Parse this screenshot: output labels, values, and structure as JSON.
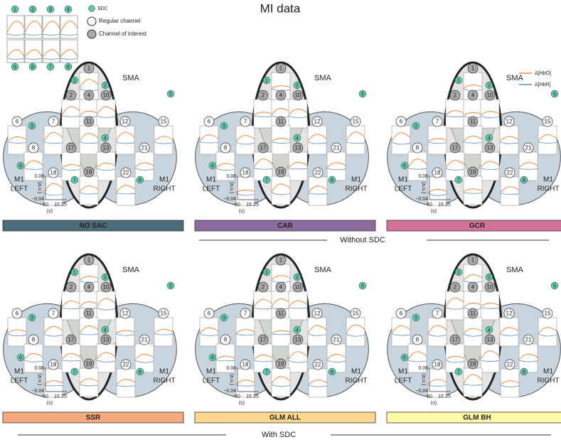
{
  "title": "MI data",
  "legend": {
    "sdc": "SDC",
    "regular": "Regular channel",
    "interest": "Channel of interest",
    "hbo": "Δ[HbO]",
    "hbr": "Δ[HbR]"
  },
  "inset_sdc": [
    1,
    2,
    3,
    4,
    5,
    6,
    7,
    8
  ],
  "montage": {
    "sma": "SMA",
    "m1": "M1",
    "left": "LEFT",
    "right": "RIGHT",
    "interest": [
      1,
      2,
      4,
      10,
      11,
      13,
      17,
      19
    ],
    "regular": [
      6,
      7,
      8,
      12,
      15,
      18,
      21,
      22
    ],
    "sdc": [
      1,
      2,
      3,
      4,
      5,
      6,
      7,
      8
    ],
    "yticks": [
      0.08,
      {
        "value": -0.04,
        "label": "−0.04"
      }
    ],
    "ylabel": "(a.u.)",
    "xticks": [
      {
        "value": -50,
        "label": "−50"
      },
      15,
      25
    ],
    "xlabel": "(s)"
  },
  "panels": [
    {
      "label": "NO SAC",
      "color": "#4c6b7a"
    },
    {
      "label": "CAR",
      "color": "#8c6b9e"
    },
    {
      "label": "GCR",
      "color": "#d2729b"
    },
    {
      "label": "SSR",
      "color": "#f5a97d"
    },
    {
      "label": "GLM ALL",
      "color": "#fcd68c"
    },
    {
      "label": "GLM BH",
      "color": "#fdf9a6"
    }
  ],
  "groups": {
    "without": "Without SDC",
    "with": "With SDC"
  }
}
